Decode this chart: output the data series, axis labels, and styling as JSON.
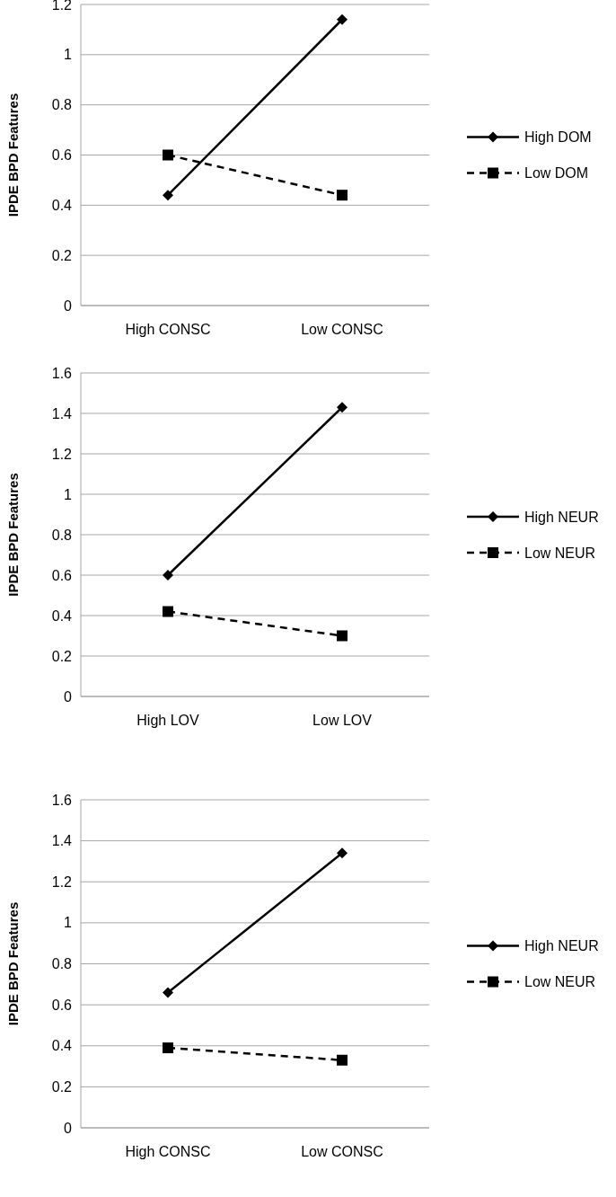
{
  "chart_data": [
    {
      "type": "line",
      "ylabel": "IPDE BPD Features",
      "categories": [
        "High CONSC",
        "Low CONSC"
      ],
      "ylim": [
        0,
        1.2
      ],
      "yticks": [
        0,
        0.2,
        0.4,
        0.6,
        0.8,
        1,
        1.2
      ],
      "grid": "y",
      "legend": "right",
      "series": [
        {
          "name": "High DOM",
          "color": "#000000",
          "values": [
            0.44,
            1.14
          ],
          "marker": "diamond",
          "line_style": "solid"
        },
        {
          "name": "Low DOM",
          "color": "#000000",
          "values": [
            0.6,
            0.44
          ],
          "marker": "square",
          "line_style": "dashed"
        }
      ]
    },
    {
      "type": "line",
      "ylabel": "IPDE BPD Features",
      "categories": [
        "High LOV",
        "Low LOV"
      ],
      "ylim": [
        0,
        1.6
      ],
      "yticks": [
        0,
        0.2,
        0.4,
        0.6,
        0.8,
        1,
        1.2,
        1.4,
        1.6
      ],
      "grid": "y",
      "legend": "right",
      "series": [
        {
          "name": "High NEUR",
          "color": "#000000",
          "values": [
            0.6,
            1.43
          ],
          "marker": "diamond",
          "line_style": "solid"
        },
        {
          "name": "Low NEUR",
          "color": "#000000",
          "values": [
            0.42,
            0.3
          ],
          "marker": "square",
          "line_style": "dashed"
        }
      ]
    },
    {
      "type": "line",
      "ylabel": "IPDE BPD Features",
      "categories": [
        "High CONSC",
        "Low CONSC"
      ],
      "ylim": [
        0,
        1.6
      ],
      "yticks": [
        0,
        0.2,
        0.4,
        0.6,
        0.8,
        1,
        1.2,
        1.4,
        1.6
      ],
      "grid": "y",
      "legend": "right",
      "series": [
        {
          "name": "High NEUR",
          "color": "#000000",
          "values": [
            0.66,
            1.34
          ],
          "marker": "diamond",
          "line_style": "solid"
        },
        {
          "name": "Low NEUR",
          "color": "#000000",
          "values": [
            0.39,
            0.33
          ],
          "marker": "square",
          "line_style": "dashed"
        }
      ]
    }
  ]
}
